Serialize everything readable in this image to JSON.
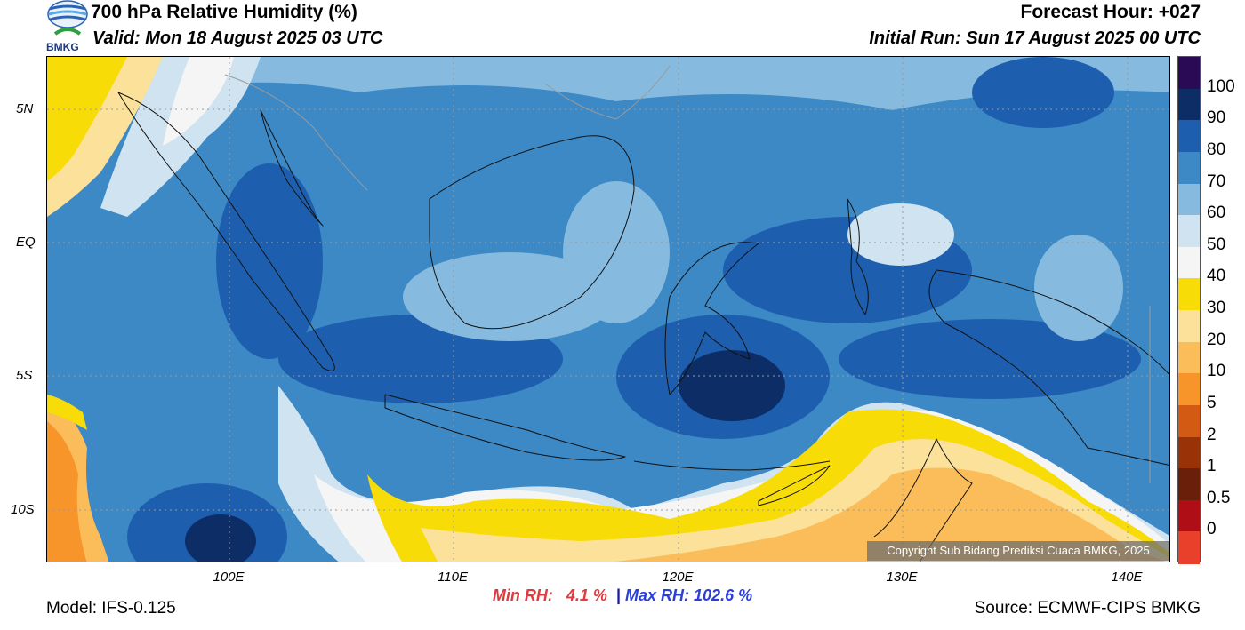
{
  "header": {
    "title": "700 hPa Relative Humidity (%)",
    "valid": "Valid: Mon 18 August 2025 03 UTC",
    "forecast_hour": "Forecast Hour: +027",
    "initial_run": "Initial Run: Sun 17 August 2025 00 UTC"
  },
  "logo": {
    "text": "BMKG",
    "icon": "bmkg-logo-icon"
  },
  "map": {
    "lat_labels": [
      "5N",
      "EQ",
      "5S",
      "10S"
    ],
    "lon_labels": [
      "100E",
      "110E",
      "120E",
      "130E",
      "140E"
    ],
    "copyright": "Copyright Sub Bidang Prediksi Cuaca BMKG, 2025"
  },
  "colorbar": {
    "labels": [
      "100",
      "90",
      "80",
      "70",
      "60",
      "50",
      "40",
      "30",
      "20",
      "10",
      "5",
      "2",
      "1",
      "0.5",
      "0"
    ],
    "colors": [
      "#2a0a55",
      "#0c2d66",
      "#1d5fae",
      "#3c89c6",
      "#86bbdf",
      "#cfe3f1",
      "#f5f5f5",
      "#f7dc07",
      "#fbe19a",
      "#fbbd5a",
      "#f8952a",
      "#d25a12",
      "#9a3208",
      "#6a1f0a",
      "#b00e16",
      "#e8402a"
    ]
  },
  "stats": {
    "min_label": "Min RH:",
    "min_value": "4.1 %",
    "separator": "|",
    "max_label": "Max RH:",
    "max_value": "102.6 %"
  },
  "footer": {
    "model": "Model: IFS-0.125",
    "source": "Source: ECMWF-CIPS BMKG"
  }
}
